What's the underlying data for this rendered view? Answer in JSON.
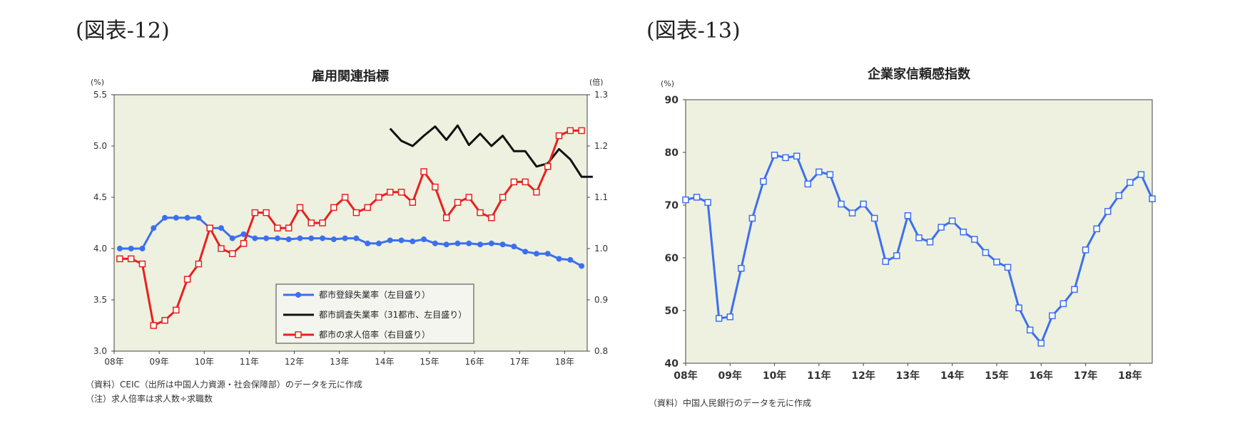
{
  "figures": [
    {
      "label": "(図表-12)"
    },
    {
      "label": "(図表-13)"
    }
  ],
  "chart_data": [
    {
      "type": "line",
      "title": "雇用関連指標",
      "left_unit": "(%)",
      "right_unit": "(倍)",
      "ylim_left": [
        3.0,
        5.5
      ],
      "ylim_right": [
        0.8,
        1.3
      ],
      "left_ticks": [
        "3.0",
        "3.5",
        "4.0",
        "4.5",
        "5.0",
        "5.5"
      ],
      "right_ticks": [
        "0.8",
        "0.9",
        "1.0",
        "1.1",
        "1.2",
        "1.3"
      ],
      "x_labels": [
        "08年",
        "09年",
        "10年",
        "11年",
        "12年",
        "13年",
        "14年",
        "15年",
        "16年",
        "17年",
        "18年"
      ],
      "x_start": "2008Q1",
      "quarters": 42,
      "grid": false,
      "legend_position": "bottom-center",
      "series": [
        {
          "name": "都市登録失業率（左目盛り）",
          "axis": "left",
          "color": "#3c6ff0",
          "marker": "circle",
          "values": [
            4.0,
            4.0,
            4.0,
            4.2,
            4.3,
            4.3,
            4.3,
            4.3,
            4.2,
            4.2,
            4.1,
            4.14,
            4.1,
            4.1,
            4.1,
            4.09,
            4.1,
            4.1,
            4.1,
            4.09,
            4.1,
            4.1,
            4.05,
            4.05,
            4.08,
            4.08,
            4.07,
            4.09,
            4.05,
            4.04,
            4.05,
            4.05,
            4.04,
            4.05,
            4.04,
            4.02,
            3.97,
            3.95,
            3.95,
            3.9,
            3.89,
            3.83
          ]
        },
        {
          "name": "都市調査失業率（31都市、左目盛り）",
          "axis": "left",
          "color": "#111111",
          "marker": "none",
          "start_index": 24,
          "values": [
            5.17,
            5.05,
            5.0,
            5.1,
            5.19,
            5.06,
            5.2,
            5.01,
            5.12,
            5.0,
            5.1,
            4.95,
            4.95,
            4.8,
            4.83,
            4.97,
            4.87,
            4.7,
            4.7
          ]
        },
        {
          "name": "都市の求人倍率（右目盛り）",
          "axis": "right",
          "color": "#e8201e",
          "marker": "square",
          "values": [
            0.98,
            0.98,
            0.97,
            0.85,
            0.86,
            0.88,
            0.94,
            0.97,
            1.04,
            1.0,
            0.99,
            1.01,
            1.07,
            1.07,
            1.04,
            1.04,
            1.08,
            1.05,
            1.05,
            1.08,
            1.1,
            1.07,
            1.08,
            1.1,
            1.11,
            1.11,
            1.09,
            1.15,
            1.12,
            1.06,
            1.09,
            1.1,
            1.07,
            1.06,
            1.1,
            1.13,
            1.13,
            1.11,
            1.16,
            1.22,
            1.23,
            1.23
          ]
        }
      ]
    },
    {
      "type": "line",
      "title": "企業家信頼感指数",
      "unit": "(%)",
      "ylim": [
        40,
        90
      ],
      "y_ticks": [
        "40",
        "50",
        "60",
        "70",
        "80",
        "90"
      ],
      "x_labels": [
        "08年",
        "09年",
        "10年",
        "11年",
        "12年",
        "13年",
        "14年",
        "15年",
        "16年",
        "17年",
        "18年"
      ],
      "x_start": "2008Q1",
      "quarters": 43,
      "grid": false,
      "series": [
        {
          "color": "#3c6ff0",
          "marker": "square",
          "values": [
            71,
            71.5,
            70.5,
            48.5,
            48.8,
            58,
            67.5,
            74.5,
            79.5,
            79,
            79.3,
            74,
            76.3,
            75.8,
            70.2,
            68.5,
            70.2,
            67.5,
            59.3,
            60.4,
            68,
            63.8,
            63,
            65.8,
            67,
            64.9,
            63.5,
            61,
            59.2,
            58.2,
            50.5,
            46.3,
            43.8,
            49,
            51.3,
            54,
            61.5,
            65.5,
            68.8,
            71.8,
            74.3,
            75.8,
            71.2
          ]
        }
      ]
    }
  ],
  "notes": {
    "chart1_source": "（資料）CEIC（出所は中国人力資源・社会保障部）のデータを元に作成",
    "chart1_note": "（注）求人倍率は求人数÷求職数",
    "chart2_source": "（資料）中国人民銀行のデータを元に作成"
  }
}
